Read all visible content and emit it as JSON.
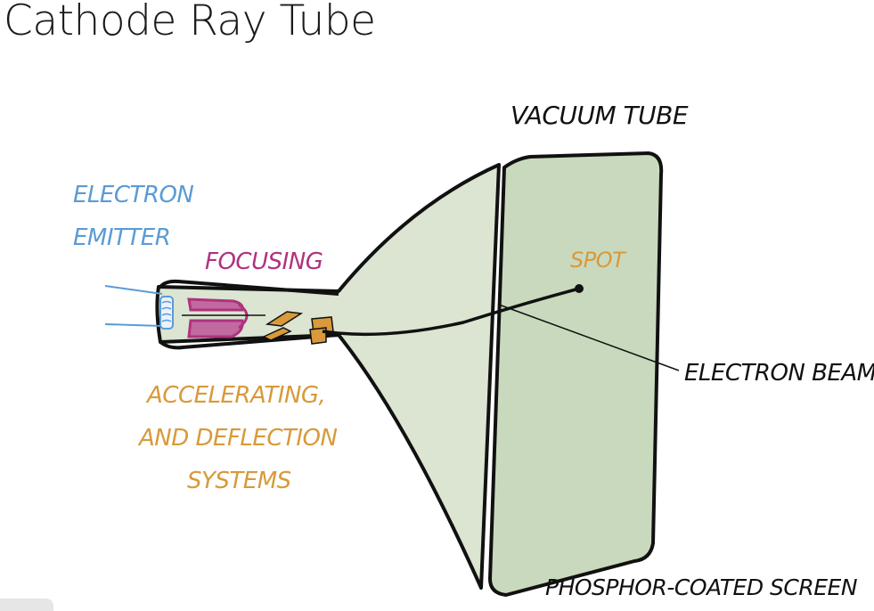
{
  "title": "Cathode Ray Tube",
  "labels": {
    "vacuum_tube": "VACUUM TUBE",
    "electron_emitter_1": "ELECTRON",
    "electron_emitter_2": "EMITTER",
    "focusing": "FOCUSING",
    "spot": "SPOT",
    "electron_beam": "ELECTRON BEAM",
    "accel_1": "ACCELERATING,",
    "accel_2": "AND DEFLECTION",
    "accel_3": "SYSTEMS",
    "screen": "PHOSPHOR-COATED SCREEN"
  },
  "colors": {
    "tube_fill": "#d7e2cd",
    "screen_fill": "#c8d8bc",
    "emitter": "#5b9bd5",
    "focusing": "#b0327f",
    "focusing_fill": "#c06aa0",
    "accel": "#d89a3a",
    "ink": "#111111"
  }
}
